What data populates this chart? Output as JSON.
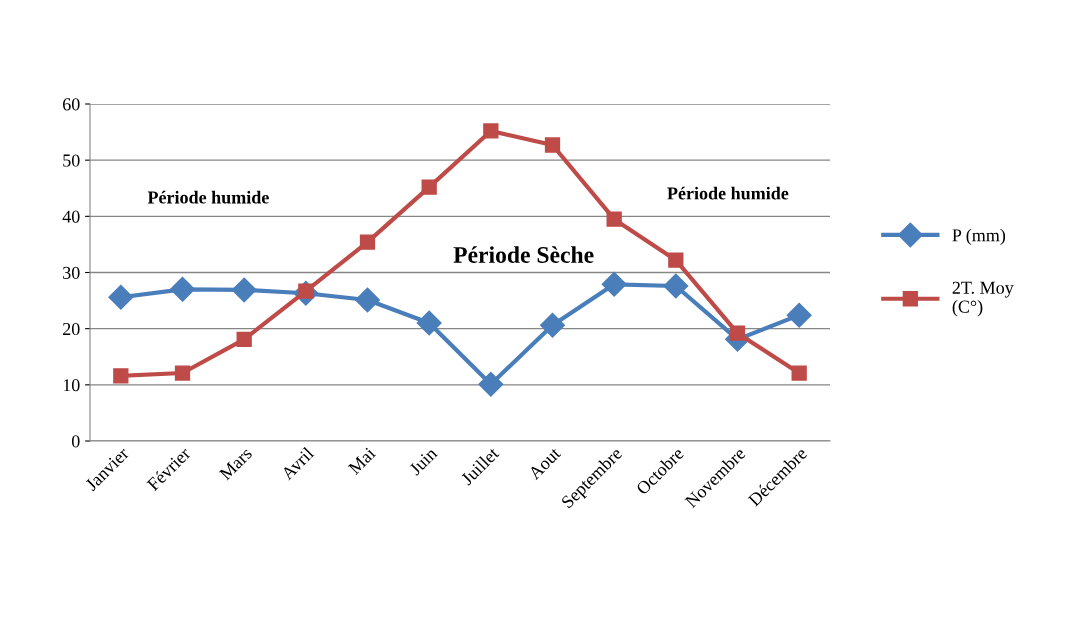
{
  "chart_data": {
    "type": "line",
    "categories": [
      "Janvier",
      "Février",
      "Mars",
      "Avril",
      "Mai",
      "Juin",
      "Juillet",
      "Aout",
      "Septembre",
      "Octobre",
      "Novembre",
      "Décembre"
    ],
    "series": [
      {
        "name": "P (mm)",
        "color": "#4a7ebb",
        "marker": "diamond",
        "values": [
          25.6,
          27.0,
          26.9,
          26.3,
          25.1,
          21.0,
          10.1,
          20.6,
          27.9,
          27.6,
          18.1,
          22.4
        ]
      },
      {
        "name": "2T. Moy\n(C°)",
        "color": "#be4b48",
        "marker": "square",
        "values": [
          11.6,
          12.1,
          18.1,
          26.7,
          35.4,
          45.2,
          55.2,
          52.7,
          39.5,
          32.2,
          19.2,
          12.1
        ]
      }
    ],
    "ylim": [
      0,
      60
    ],
    "yticks": [
      0,
      10,
      20,
      30,
      40,
      50,
      60
    ],
    "grid": "y",
    "legend": "right",
    "line_style": "solid",
    "annotations": [
      "Période humide",
      "Période Sèche",
      "Période humide"
    ]
  }
}
